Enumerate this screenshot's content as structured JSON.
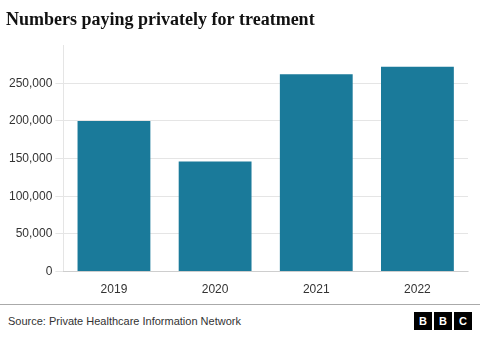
{
  "chart_data": {
    "type": "bar",
    "title": "Numbers paying privately for treatment",
    "categories": [
      "2019",
      "2020",
      "2021",
      "2022"
    ],
    "values": [
      200000,
      146000,
      262000,
      272000
    ],
    "color": "#1a7a9a",
    "ylim": [
      0,
      300000
    ],
    "yticks": [
      0,
      {
        "value": 50000,
        "label": "50,000"
      },
      {
        "value": 100000,
        "label": "100,000"
      },
      {
        "value": 150000,
        "label": "150,000"
      },
      {
        "value": 200000,
        "label": "200,000"
      },
      {
        "value": 250000,
        "label": "250,000"
      }
    ],
    "grid": true,
    "annotations": [
      "Source: Private Healthcare Information Network",
      "B",
      "B",
      "C"
    ]
  }
}
